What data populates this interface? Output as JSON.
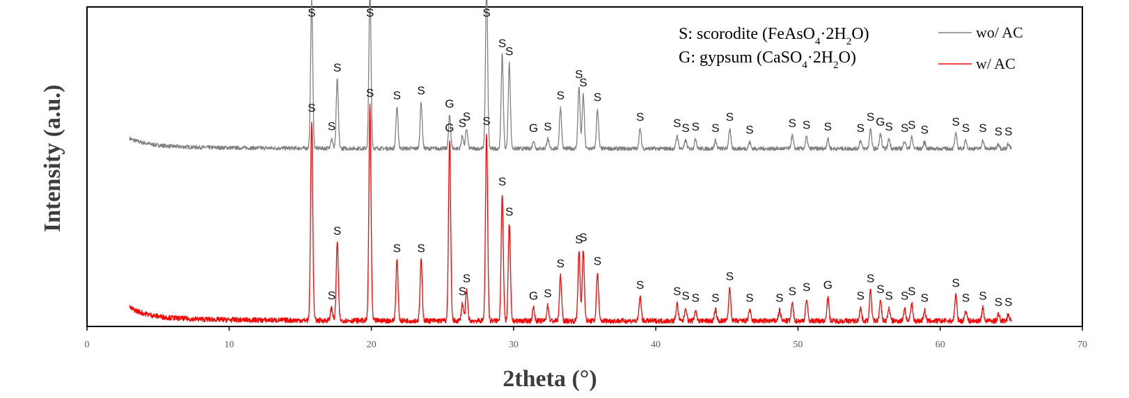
{
  "chart_data": {
    "type": "line",
    "title": "",
    "xlabel": "2theta (°)",
    "ylabel": "Intensity (a.u.)",
    "xlim": [
      0,
      70
    ],
    "xticks": [
      0,
      10,
      20,
      30,
      40,
      50,
      60,
      70
    ],
    "x_range_plotted": [
      3,
      65
    ],
    "grid": false,
    "legend_position": "top-right",
    "annotations": {
      "scorodite": {
        "prefix": "S: scorodite (",
        "formula": [
          "FeAsO",
          "4",
          "·2H",
          "2",
          "O)"
        ]
      },
      "gypsum": {
        "prefix": "G: gypsum (",
        "formula": [
          "CaSO",
          "4",
          "·2H",
          "2",
          "O)"
        ]
      }
    },
    "series": [
      {
        "name": "wo/ AC",
        "color": "#808080",
        "baseline": 0.09,
        "noise": 0.012,
        "peaks": [
          {
            "x": 15.8,
            "h": 0.9,
            "label": "S"
          },
          {
            "x": 17.2,
            "h": 0.06,
            "label": "S"
          },
          {
            "x": 17.6,
            "h": 0.42,
            "label": "S"
          },
          {
            "x": 19.9,
            "h": 0.97,
            "label": "S"
          },
          {
            "x": 21.8,
            "h": 0.25,
            "label": "S"
          },
          {
            "x": 23.5,
            "h": 0.28,
            "label": "S"
          },
          {
            "x": 25.5,
            "h": 0.2,
            "label": "G"
          },
          {
            "x": 26.4,
            "h": 0.08,
            "label": "S"
          },
          {
            "x": 26.7,
            "h": 0.12,
            "label": "S"
          },
          {
            "x": 28.1,
            "h": 1.0,
            "label": "S"
          },
          {
            "x": 29.2,
            "h": 0.57,
            "label": "S"
          },
          {
            "x": 29.7,
            "h": 0.52,
            "label": "S"
          },
          {
            "x": 31.4,
            "h": 0.05,
            "label": "G"
          },
          {
            "x": 32.4,
            "h": 0.06,
            "label": "S"
          },
          {
            "x": 33.3,
            "h": 0.25,
            "label": "S"
          },
          {
            "x": 34.6,
            "h": 0.38,
            "label": "S"
          },
          {
            "x": 34.9,
            "h": 0.33,
            "label": "S"
          },
          {
            "x": 35.9,
            "h": 0.24,
            "label": "S"
          },
          {
            "x": 38.9,
            "h": 0.12,
            "label": "S"
          },
          {
            "x": 41.5,
            "h": 0.08,
            "label": "S"
          },
          {
            "x": 42.1,
            "h": 0.05,
            "label": "S"
          },
          {
            "x": 42.8,
            "h": 0.06,
            "label": "S"
          },
          {
            "x": 44.2,
            "h": 0.05,
            "label": "S"
          },
          {
            "x": 45.2,
            "h": 0.12,
            "label": "S"
          },
          {
            "x": 46.6,
            "h": 0.04,
            "label": "S"
          },
          {
            "x": 49.6,
            "h": 0.08,
            "label": "S"
          },
          {
            "x": 50.6,
            "h": 0.07,
            "label": "S"
          },
          {
            "x": 52.1,
            "h": 0.06,
            "label": "S"
          },
          {
            "x": 54.4,
            "h": 0.05,
            "label": "S"
          },
          {
            "x": 55.1,
            "h": 0.12,
            "label": "S"
          },
          {
            "x": 55.8,
            "h": 0.09,
            "label": "G"
          },
          {
            "x": 56.4,
            "h": 0.06,
            "label": "S"
          },
          {
            "x": 57.5,
            "h": 0.05,
            "label": "S"
          },
          {
            "x": 58.0,
            "h": 0.07,
            "label": "S"
          },
          {
            "x": 58.9,
            "h": 0.04,
            "label": "S"
          },
          {
            "x": 61.1,
            "h": 0.09,
            "label": "S"
          },
          {
            "x": 61.8,
            "h": 0.05,
            "label": "S"
          },
          {
            "x": 63.0,
            "h": 0.05,
            "label": "S"
          },
          {
            "x": 64.1,
            "h": 0.03,
            "label": "S"
          },
          {
            "x": 64.8,
            "h": 0.03,
            "label": "S"
          }
        ]
      },
      {
        "name": "w/ AC",
        "color": "#ff0000",
        "baseline": 0.0,
        "noise": 0.012,
        "peaks": [
          {
            "x": 15.8,
            "h": 0.93,
            "label": "S"
          },
          {
            "x": 17.2,
            "h": 0.06,
            "label": "S"
          },
          {
            "x": 17.6,
            "h": 0.36,
            "label": "S"
          },
          {
            "x": 19.9,
            "h": 1.0,
            "label": "S"
          },
          {
            "x": 21.8,
            "h": 0.28,
            "label": "S"
          },
          {
            "x": 23.5,
            "h": 0.28,
            "label": "S"
          },
          {
            "x": 25.5,
            "h": 0.84,
            "label": "G"
          },
          {
            "x": 26.4,
            "h": 0.08,
            "label": "S"
          },
          {
            "x": 26.7,
            "h": 0.14,
            "label": "S"
          },
          {
            "x": 28.1,
            "h": 0.87,
            "label": "S"
          },
          {
            "x": 29.2,
            "h": 0.59,
            "label": "S"
          },
          {
            "x": 29.7,
            "h": 0.45,
            "label": "S"
          },
          {
            "x": 31.4,
            "h": 0.06,
            "label": "G"
          },
          {
            "x": 32.4,
            "h": 0.07,
            "label": "S"
          },
          {
            "x": 33.3,
            "h": 0.21,
            "label": "S"
          },
          {
            "x": 34.6,
            "h": 0.32,
            "label": "S"
          },
          {
            "x": 34.9,
            "h": 0.33,
            "label": "S"
          },
          {
            "x": 35.9,
            "h": 0.22,
            "label": "S"
          },
          {
            "x": 38.9,
            "h": 0.11,
            "label": "S"
          },
          {
            "x": 41.5,
            "h": 0.08,
            "label": "S"
          },
          {
            "x": 42.1,
            "h": 0.06,
            "label": "S"
          },
          {
            "x": 42.8,
            "h": 0.05,
            "label": "S"
          },
          {
            "x": 44.2,
            "h": 0.05,
            "label": "S"
          },
          {
            "x": 45.2,
            "h": 0.15,
            "label": "S"
          },
          {
            "x": 46.6,
            "h": 0.05,
            "label": "S"
          },
          {
            "x": 48.7,
            "h": 0.05,
            "label": "S"
          },
          {
            "x": 49.6,
            "h": 0.08,
            "label": "S"
          },
          {
            "x": 50.6,
            "h": 0.1,
            "label": "S"
          },
          {
            "x": 52.1,
            "h": 0.11,
            "label": "G"
          },
          {
            "x": 54.4,
            "h": 0.06,
            "label": "S"
          },
          {
            "x": 55.1,
            "h": 0.14,
            "label": "S"
          },
          {
            "x": 55.8,
            "h": 0.09,
            "label": "S"
          },
          {
            "x": 56.4,
            "h": 0.06,
            "label": "S"
          },
          {
            "x": 57.5,
            "h": 0.06,
            "label": "S"
          },
          {
            "x": 58.0,
            "h": 0.08,
            "label": "S"
          },
          {
            "x": 58.9,
            "h": 0.05,
            "label": "S"
          },
          {
            "x": 61.1,
            "h": 0.12,
            "label": "S"
          },
          {
            "x": 61.8,
            "h": 0.05,
            "label": "S"
          },
          {
            "x": 63.0,
            "h": 0.06,
            "label": "S"
          },
          {
            "x": 64.1,
            "h": 0.03,
            "label": "S"
          },
          {
            "x": 64.8,
            "h": 0.03,
            "label": "S"
          }
        ]
      }
    ]
  }
}
